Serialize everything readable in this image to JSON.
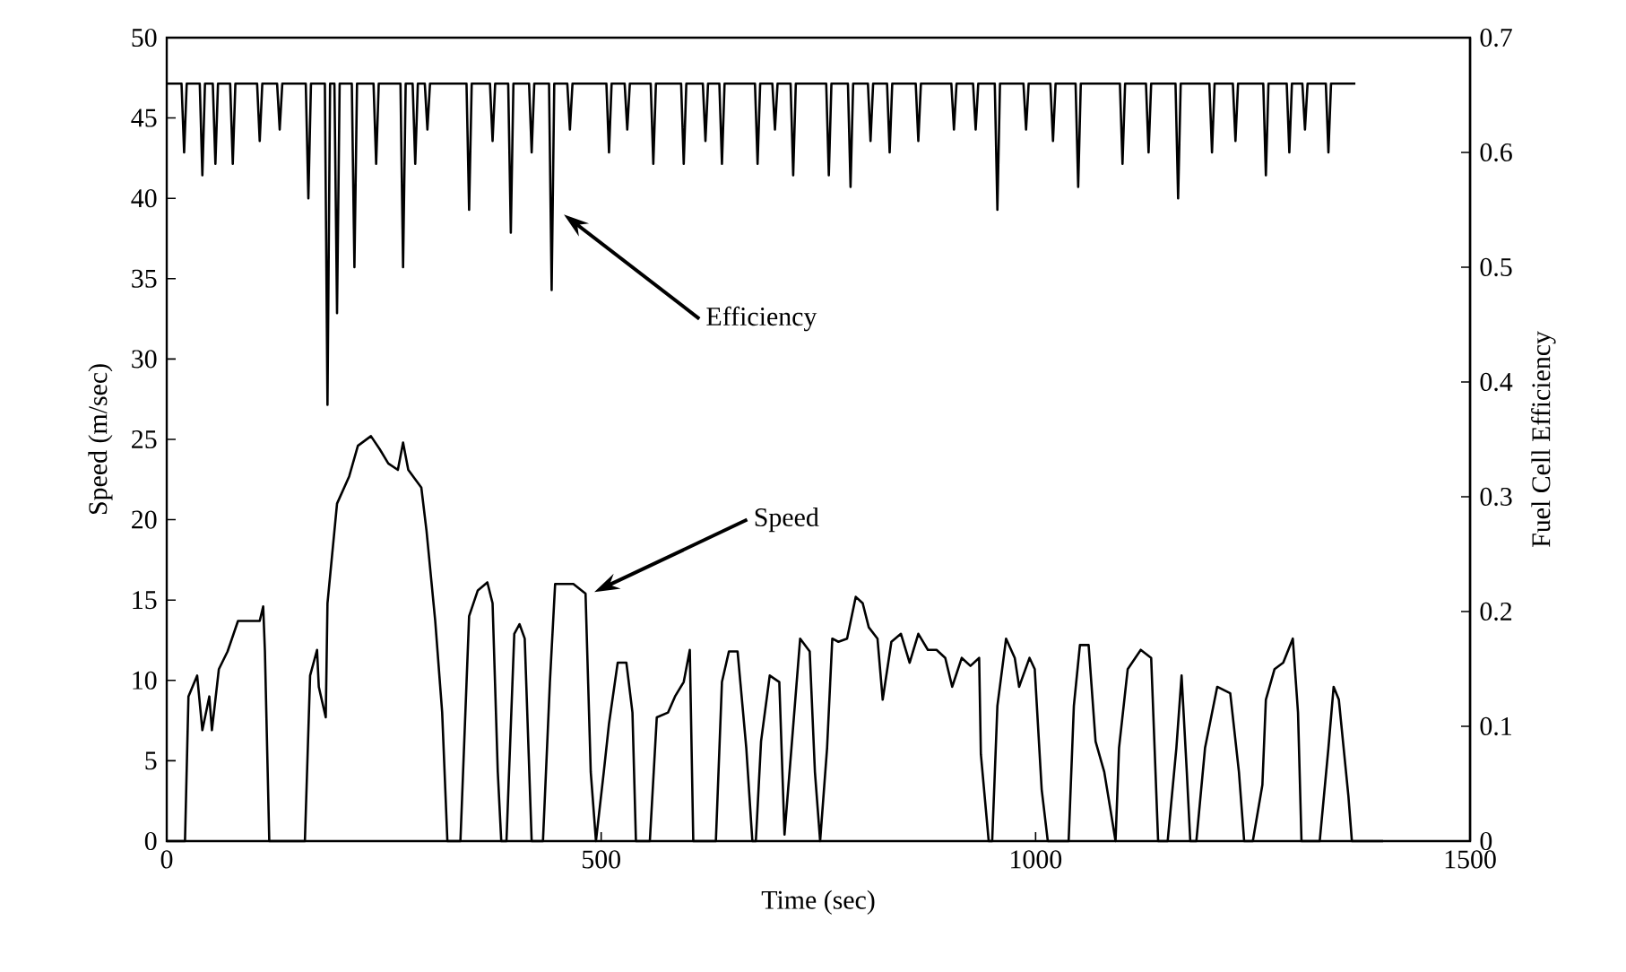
{
  "chart_data": {
    "type": "line",
    "xlabel": "Time (sec)",
    "ylabel": "Speed (m/sec)",
    "y2label": "Fuel Cell  Efficiency",
    "xlim": [
      0,
      1500
    ],
    "xticks": [
      0,
      500,
      1000,
      1500
    ],
    "ylim": [
      0,
      50
    ],
    "yticks": [
      0,
      5,
      10,
      15,
      20,
      25,
      30,
      35,
      40,
      45,
      50
    ],
    "y2lim": [
      0,
      0.7
    ],
    "y2ticks": [
      0,
      0.1,
      0.2,
      0.3,
      0.4,
      0.5,
      0.6,
      0.7
    ],
    "series": [
      {
        "color": "#000000",
        "x": [
          0,
          21,
          25,
          35,
          41,
          49,
          52,
          60,
          70,
          82,
          107,
          111,
          113,
          118,
          159,
          165,
          173,
          175,
          183,
          185,
          196,
          210,
          220,
          235,
          245,
          255,
          266,
          272,
          278,
          293,
          299,
          309,
          317,
          323,
          338,
          348,
          358,
          369,
          375,
          381,
          385,
          391,
          400,
          406,
          412,
          420,
          433,
          441,
          447,
          468,
          482,
          488,
          494,
          503,
          509,
          519,
          529,
          536,
          540,
          556,
          564,
          577,
          585,
          595,
          602,
          606,
          632,
          639,
          647,
          657,
          667,
          674,
          678,
          684,
          694,
          705,
          711,
          719,
          729,
          740,
          746,
          752,
          760,
          766,
          773,
          783,
          793,
          801,
          808,
          818,
          824,
          834,
          845,
          855,
          865,
          876,
          886,
          896,
          904,
          915,
          925,
          935,
          937,
          946,
          950,
          956,
          966,
          976,
          981,
          993,
          999,
          1007,
          1014,
          1038,
          1044,
          1051,
          1061,
          1069,
          1079,
          1086,
          1092,
          1096,
          1106,
          1121,
          1133,
          1141,
          1152,
          1162,
          1168,
          1174,
          1178,
          1185,
          1195,
          1209,
          1224,
          1234,
          1240,
          1250,
          1261,
          1265,
          1275,
          1285,
          1296,
          1302,
          1306,
          1327,
          1337,
          1343,
          1349,
          1360,
          1364,
          1400
        ],
        "values": [
          0,
          0,
          9,
          10.3,
          6.9,
          9,
          6.9,
          10.7,
          11.8,
          13.7,
          13.7,
          14.6,
          11.8,
          0,
          0,
          10.3,
          11.9,
          9.6,
          7.7,
          14.8,
          21,
          22.7,
          24.6,
          25.2,
          24.4,
          23.5,
          23.1,
          24.8,
          23.1,
          22,
          19.3,
          13.7,
          8,
          0,
          0,
          14,
          15.6,
          16.1,
          14.8,
          4.3,
          0,
          0,
          12.9,
          13.5,
          12.6,
          0,
          0,
          9.9,
          16,
          16,
          15.4,
          4.3,
          0,
          4.3,
          7.3,
          11.1,
          11.1,
          8,
          0,
          0,
          7.7,
          8,
          9,
          9.9,
          11.9,
          0,
          0,
          9.9,
          11.8,
          11.8,
          5.8,
          0,
          0,
          6.2,
          10.3,
          9.9,
          0.4,
          5.8,
          12.6,
          11.8,
          4.3,
          0,
          5.8,
          12.6,
          12.4,
          12.6,
          15.2,
          14.8,
          13.3,
          12.6,
          8.8,
          12.4,
          12.9,
          11.1,
          12.9,
          11.9,
          11.9,
          11.4,
          9.6,
          11.4,
          10.9,
          11.4,
          5.4,
          0,
          0,
          8.4,
          12.6,
          11.4,
          9.6,
          11.4,
          10.7,
          3.2,
          0,
          0,
          8.4,
          12.2,
          12.2,
          6.2,
          4.3,
          2,
          0,
          5.8,
          10.7,
          11.9,
          11.4,
          0,
          0,
          5.8,
          10.3,
          4.3,
          0,
          0,
          5.8,
          9.6,
          9.2,
          4.3,
          0,
          0,
          3.5,
          8.8,
          10.7,
          11.1,
          12.6,
          8,
          0,
          0,
          5.8,
          9.6,
          8.8,
          2.8,
          0,
          0
        ]
      },
      {
        "color": "#000000",
        "axis": "y2",
        "x": [
          0,
          17,
          20,
          23,
          38,
          41,
          44,
          53,
          56,
          59,
          73,
          76,
          79,
          104,
          107,
          110,
          127,
          130,
          133,
          160,
          163,
          166,
          182,
          185,
          188,
          193,
          196,
          199,
          213,
          216,
          219,
          238,
          241,
          244,
          269,
          272,
          275,
          283,
          286,
          289,
          297,
          300,
          303,
          345,
          348,
          351,
          372,
          375,
          378,
          393,
          396,
          399,
          417,
          420,
          423,
          440,
          443,
          446,
          461,
          464,
          467,
          506,
          509,
          512,
          527,
          530,
          533,
          557,
          560,
          563,
          592,
          595,
          598,
          617,
          620,
          623,
          636,
          639,
          642,
          677,
          680,
          683,
          697,
          700,
          703,
          718,
          721,
          724,
          759,
          762,
          765,
          784,
          787,
          790,
          807,
          810,
          813,
          829,
          832,
          835,
          862,
          865,
          868,
          903,
          906,
          909,
          928,
          931,
          934,
          953,
          956,
          959,
          986,
          989,
          992,
          1017,
          1020,
          1023,
          1046,
          1049,
          1052,
          1097,
          1100,
          1103,
          1127,
          1130,
          1133,
          1161,
          1164,
          1167,
          1200,
          1203,
          1206,
          1227,
          1230,
          1233,
          1262,
          1265,
          1268,
          1289,
          1292,
          1295,
          1307,
          1310,
          1313,
          1334,
          1337,
          1340,
          1368
        ],
        "values": [
          0.66,
          0.66,
          0.6,
          0.66,
          0.66,
          0.58,
          0.66,
          0.66,
          0.59,
          0.66,
          0.66,
          0.59,
          0.66,
          0.66,
          0.61,
          0.66,
          0.66,
          0.62,
          0.66,
          0.66,
          0.56,
          0.66,
          0.66,
          0.38,
          0.66,
          0.66,
          0.46,
          0.66,
          0.66,
          0.5,
          0.66,
          0.66,
          0.59,
          0.66,
          0.66,
          0.5,
          0.66,
          0.66,
          0.59,
          0.66,
          0.66,
          0.62,
          0.66,
          0.66,
          0.55,
          0.66,
          0.66,
          0.61,
          0.66,
          0.66,
          0.53,
          0.66,
          0.66,
          0.6,
          0.66,
          0.66,
          0.48,
          0.66,
          0.66,
          0.62,
          0.66,
          0.66,
          0.6,
          0.66,
          0.66,
          0.62,
          0.66,
          0.66,
          0.59,
          0.66,
          0.66,
          0.59,
          0.66,
          0.66,
          0.61,
          0.66,
          0.66,
          0.59,
          0.66,
          0.66,
          0.59,
          0.66,
          0.66,
          0.62,
          0.66,
          0.66,
          0.58,
          0.66,
          0.66,
          0.58,
          0.66,
          0.66,
          0.57,
          0.66,
          0.66,
          0.61,
          0.66,
          0.66,
          0.6,
          0.66,
          0.66,
          0.61,
          0.66,
          0.66,
          0.62,
          0.66,
          0.66,
          0.62,
          0.66,
          0.66,
          0.55,
          0.66,
          0.66,
          0.62,
          0.66,
          0.66,
          0.61,
          0.66,
          0.66,
          0.57,
          0.66,
          0.66,
          0.59,
          0.66,
          0.66,
          0.6,
          0.66,
          0.66,
          0.56,
          0.66,
          0.66,
          0.6,
          0.66,
          0.66,
          0.61,
          0.66,
          0.66,
          0.58,
          0.66,
          0.66,
          0.6,
          0.66,
          0.66,
          0.62,
          0.66,
          0.66,
          0.6,
          0.66,
          0.66
        ]
      }
    ],
    "annotations": [
      "Efficiency",
      "Speed"
    ]
  }
}
